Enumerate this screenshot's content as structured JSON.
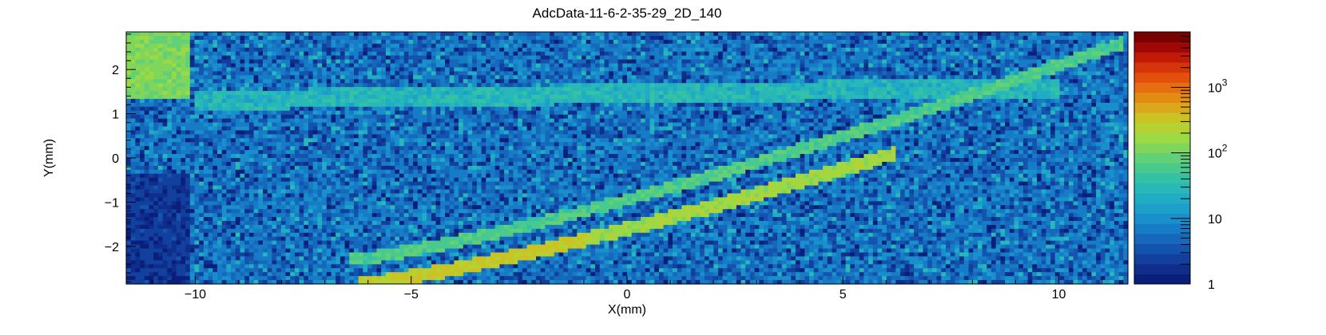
{
  "chart_data": {
    "type": "heatmap",
    "title": "AdcData-11-6-2-35-29_2D_140",
    "xlabel": "X(mm)",
    "ylabel": "Y(mm)",
    "xlim": [
      -11.6,
      11.6
    ],
    "ylim": [
      -2.85,
      2.85
    ],
    "x_ticks": [
      {
        "value": -10,
        "label": "−10"
      },
      {
        "value": -5,
        "label": "−5"
      },
      {
        "value": 0,
        "label": "0"
      },
      {
        "value": 5,
        "label": "5"
      },
      {
        "value": 10,
        "label": "10"
      }
    ],
    "y_ticks": [
      {
        "value": -2,
        "label": "−2"
      },
      {
        "value": -1,
        "label": "−1"
      },
      {
        "value": 0,
        "label": "0"
      },
      {
        "value": 1,
        "label": "1"
      },
      {
        "value": 2,
        "label": "2"
      }
    ],
    "colorbar": {
      "scale": "log",
      "min": 1,
      "max": 7000,
      "ticks": [
        {
          "value": 1,
          "label": "1"
        },
        {
          "value": 10,
          "label": "10"
        },
        {
          "value": 100,
          "label": "10",
          "sup": "2"
        },
        {
          "value": 1000,
          "label": "10",
          "sup": "3"
        }
      ],
      "colors": [
        "#0a1e7a",
        "#0f2e8c",
        "#12409e",
        "#1454ae",
        "#1668bc",
        "#177cc6",
        "#198fcc",
        "#1c9fcb",
        "#20adc4",
        "#28b8b8",
        "#34c1a6",
        "#48c98e",
        "#62d076",
        "#80d65a",
        "#9cd944",
        "#b6d232",
        "#cbc224",
        "#daa81a",
        "#e38c14",
        "#e66e10",
        "#e2500c",
        "#d6340a",
        "#c21a08",
        "#a00806",
        "#7a0000"
      ]
    },
    "features": [
      {
        "name": "lower arc",
        "x_start": -6.2,
        "y_start": -2.85,
        "x_end": 6.2,
        "y_end": 0.1
      },
      {
        "name": "middle arc",
        "x_start": -6.4,
        "y_start": -2.3,
        "x_end": 11.5,
        "y_end": 2.6
      },
      {
        "name": "upper band",
        "x_start": -10,
        "y_start": 1.3,
        "x_end": 10,
        "y_end": 1.6
      },
      {
        "name": "saturated region",
        "x_start": -11.6,
        "y_start": 1.3,
        "x_end": -10.1,
        "y_end": 2.85
      }
    ]
  }
}
